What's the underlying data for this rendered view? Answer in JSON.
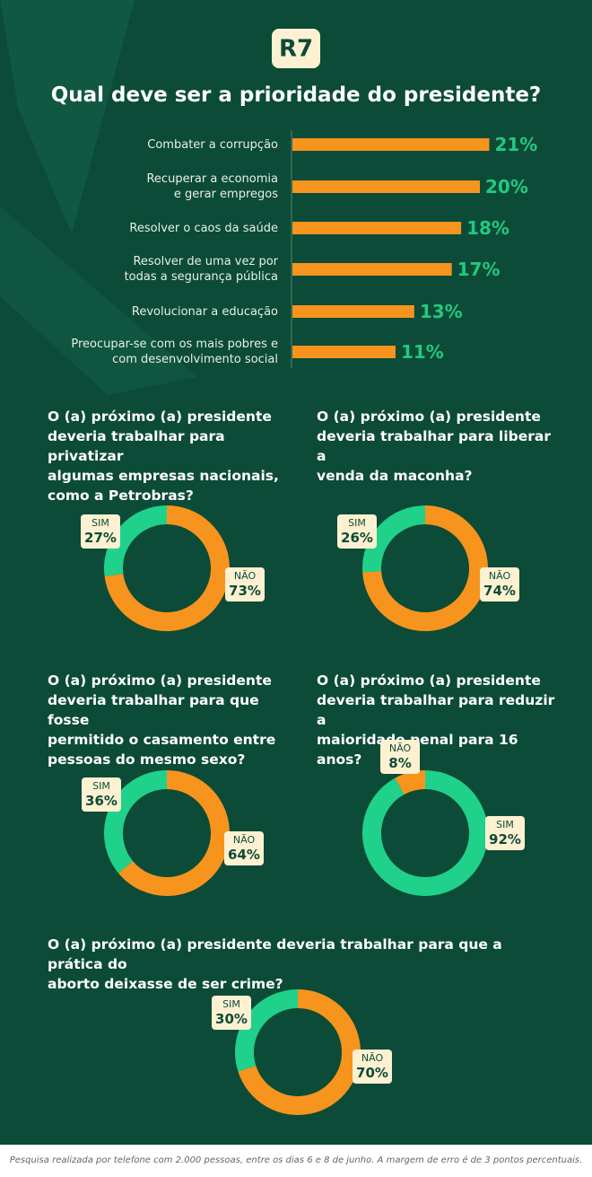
{
  "logo": "R7",
  "chart_data": [
    {
      "type": "bar",
      "title": "Qual deve ser a prioridade do presidente?",
      "categories": [
        "Combater a corrupção",
        "Recuperar a economia\ne gerar empregos",
        "Resolver o caos da saúde",
        "Resolver de uma vez por\ntodas a segurança pública",
        "Revolucionar a educação",
        "Preocupar-se com os mais pobres e\ncom desenvolvimento social"
      ],
      "values": [
        21,
        20,
        18,
        17,
        13,
        11
      ],
      "value_labels": [
        "21%",
        "20%",
        "18%",
        "17%",
        "13%",
        "11%"
      ],
      "color": "#f7941d",
      "label_color": "#22c97f"
    },
    {
      "type": "donut",
      "title": "O (a) próximo (a) presidente\ndeveria trabalhar para privatizar\nalgumas empresas nacionais,\ncomo a Petrobras?",
      "categories": [
        "SIM",
        "NÃO"
      ],
      "values": [
        27,
        73
      ],
      "value_labels": [
        "27%",
        "73%"
      ],
      "colors": [
        "#1fd18b",
        "#f7941d"
      ]
    },
    {
      "type": "donut",
      "title": "O (a) próximo (a) presidente\ndeveria trabalhar para liberar a\nvenda da maconha?",
      "categories": [
        "SIM",
        "NÃO"
      ],
      "values": [
        26,
        74
      ],
      "value_labels": [
        "26%",
        "74%"
      ],
      "colors": [
        "#1fd18b",
        "#f7941d"
      ]
    },
    {
      "type": "donut",
      "title": "O (a) próximo (a) presidente\ndeveria trabalhar para que fosse\npermitido o casamento entre\npessoas do mesmo sexo?",
      "categories": [
        "SIM",
        "NÃO"
      ],
      "values": [
        36,
        64
      ],
      "value_labels": [
        "36%",
        "64%"
      ],
      "colors": [
        "#1fd18b",
        "#f7941d"
      ]
    },
    {
      "type": "donut",
      "title": "O (a) próximo (a) presidente\ndeveria trabalhar para reduzir a\nmaioridade penal para 16 anos?",
      "categories": [
        "NÃO",
        "SIM"
      ],
      "values": [
        8,
        92
      ],
      "value_labels": [
        "8%",
        "92%"
      ],
      "colors": [
        "#f7941d",
        "#1fd18b"
      ]
    },
    {
      "type": "donut",
      "title": "O (a) próximo (a) presidente deveria trabalhar para que a prática do\naborto deixasse de ser crime?",
      "categories": [
        "SIM",
        "NÃO"
      ],
      "values": [
        30,
        70
      ],
      "value_labels": [
        "30%",
        "70%"
      ],
      "colors": [
        "#1fd18b",
        "#f7941d"
      ]
    }
  ],
  "footer": "Pesquisa realizada por telefone com 2.000 pessoas, entre os dias 6 e 8 de junho. A margem de erro é de 3 pontos percentuais."
}
